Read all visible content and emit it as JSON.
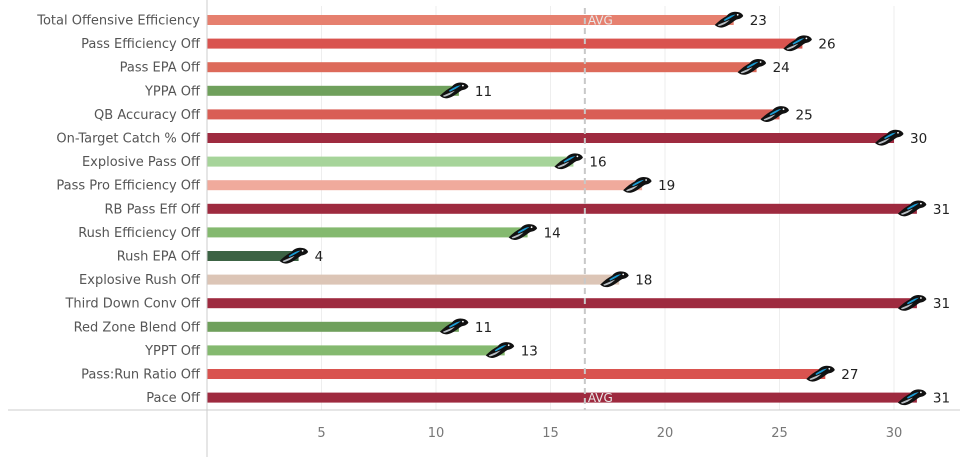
{
  "chart_data": {
    "type": "bar",
    "orientation": "horizontal",
    "categories": [
      "Total Offensive Efficiency",
      "Pass Efficiency Off",
      "Pass EPA Off",
      "YPPA Off",
      "QB Accuracy Off",
      "On-Target Catch % Off",
      "Explosive Pass Off",
      "Pass Pro Efficiency Off",
      "RB Pass Eff Off",
      "Rush Efficiency Off",
      "Rush EPA Off",
      "Explosive Rush Off",
      "Third Down Conv Off",
      "Red Zone Blend Off",
      "YPPT Off",
      "Pass:Run Ratio Off",
      "Pace Off"
    ],
    "values": [
      23,
      26,
      24,
      11,
      25,
      30,
      16,
      19,
      31,
      14,
      4,
      18,
      31,
      11,
      13,
      27,
      31
    ],
    "colors": [
      "#e6806f",
      "#d9534f",
      "#dd6a5a",
      "#6fa05c",
      "#d95e55",
      "#9e2a3f",
      "#a6d49a",
      "#f0aa9c",
      "#9e2a3f",
      "#84b96f",
      "#3c6344",
      "#dcc5b6",
      "#9e2a3f",
      "#6fa05c",
      "#84b96f",
      "#d9534f",
      "#9e2a3f"
    ],
    "xlim": [
      0,
      32
    ],
    "xticks": [
      5,
      10,
      15,
      20,
      25,
      30
    ],
    "average": 16.5,
    "average_label": "AVG",
    "grid": true,
    "marker_icon": "panthers-logo-icon"
  }
}
